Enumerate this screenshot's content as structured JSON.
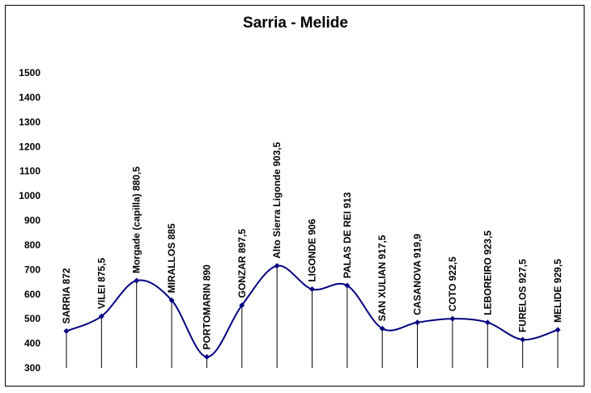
{
  "chart_data": {
    "type": "line",
    "title": "Sarria - Melide",
    "xlabel": "",
    "ylabel": "",
    "ylim": [
      300,
      1500
    ],
    "yticks": [
      1500,
      1400,
      1300,
      1200,
      1100,
      1000,
      900,
      800,
      700,
      600,
      500,
      400,
      300
    ],
    "grid": false,
    "legend": "none",
    "smooth": true,
    "line_color": "#000080",
    "categories": [
      "SARRIA 872",
      "VILEI 875,5",
      "Morgade (capilla) 880,5",
      "MIRALLOS  885",
      "PORTOMARIN 890",
      "GONZAR  897,5",
      "Alto Sierra Ligonde 903,5",
      "LIGONDE 906",
      "PALAS DE REI  913",
      "SAN XULIAN  917,5",
      "CASANOVA  919,9",
      "COTO  922,5",
      "LEBOREIRO  923,5",
      "FURELOS   927,5",
      "MELIDE  929,5"
    ],
    "values": [
      450,
      510,
      655,
      575,
      345,
      555,
      715,
      620,
      635,
      460,
      485,
      500,
      485,
      415,
      455
    ]
  }
}
